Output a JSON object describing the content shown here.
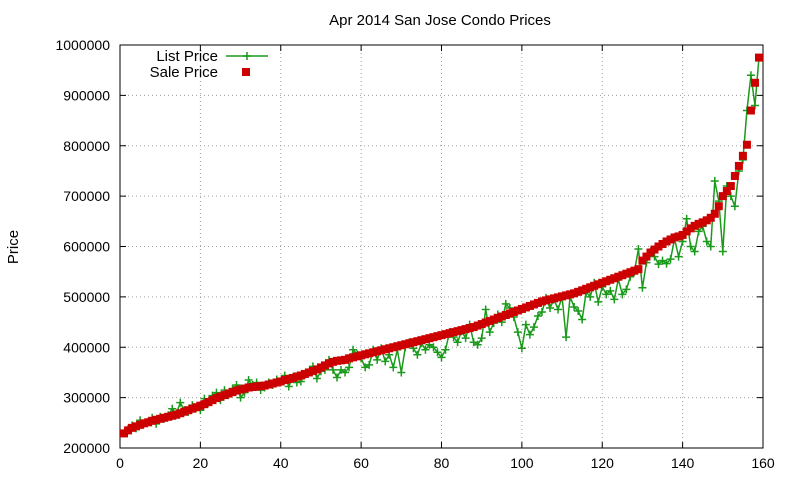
{
  "chart_data": {
    "type": "line",
    "title": "Apr 2014 San Jose Condo Prices",
    "xlabel": "",
    "ylabel": "Price",
    "xlim": [
      0,
      160
    ],
    "ylim": [
      200000,
      1000000
    ],
    "x_ticks": [
      0,
      20,
      40,
      60,
      80,
      100,
      120,
      140,
      160
    ],
    "y_ticks": [
      200000,
      300000,
      400000,
      500000,
      600000,
      700000,
      800000,
      900000,
      1000000
    ],
    "grid": true,
    "legend_position": "top-left",
    "series": [
      {
        "name": "List Price",
        "kind": "line-plus",
        "color": "#1a9a1a",
        "values": [
          229000,
          238000,
          245000,
          239000,
          255000,
          249000,
          252000,
          260000,
          248000,
          262000,
          258000,
          265000,
          278000,
          268000,
          290000,
          275000,
          272000,
          285000,
          280000,
          275000,
          298000,
          290000,
          304000,
          310000,
          295000,
          315000,
          305000,
          318000,
          325000,
          300000,
          310000,
          335000,
          325000,
          330000,
          315000,
          320000,
          330000,
          325000,
          336000,
          330000,
          344000,
          322000,
          340000,
          330000,
          332000,
          345000,
          350000,
          362000,
          338000,
          352000,
          355000,
          375000,
          355000,
          340000,
          355000,
          350000,
          360000,
          395000,
          386000,
          378000,
          360000,
          365000,
          395000,
          375000,
          398000,
          372000,
          385000,
          360000,
          395000,
          350000,
          400000,
          410000,
          398000,
          385000,
          408000,
          395000,
          405000,
          400000,
          390000,
          380000,
          395000,
          430000,
          420000,
          410000,
          432000,
          418000,
          445000,
          410000,
          405000,
          418000,
          475000,
          430000,
          448000,
          465000,
          450000,
          486000,
          478000,
          460000,
          430000,
          398000,
          445000,
          425000,
          440000,
          462000,
          470000,
          498000,
          478000,
          495000,
          475000,
          500000,
          420000,
          500000,
          480000,
          472000,
          455000,
          510000,
          500000,
          528000,
          490000,
          520000,
          505000,
          512000,
          495000,
          535000,
          505000,
          515000,
          540000,
          550000,
          595000,
          518000,
          568000,
          590000,
          580000,
          565000,
          572000,
          566000,
          575000,
          615000,
          580000,
          610000,
          655000,
          600000,
          590000,
          630000,
          640000,
          610000,
          600000,
          730000,
          690000,
          590000,
          720000,
          700000,
          680000,
          750000,
          772000,
          870000,
          940000,
          880000,
          975000
        ]
      },
      {
        "name": "Sale Price",
        "kind": "square",
        "color": "#cc0000",
        "values": [
          229000,
          235000,
          240000,
          243000,
          246000,
          249000,
          251000,
          254000,
          256000,
          258000,
          260000,
          262000,
          264000,
          266000,
          269000,
          272000,
          275000,
          278000,
          281000,
          284000,
          287000,
          291000,
          295000,
          299000,
          302000,
          305000,
          308000,
          311000,
          314000,
          316000,
          318000,
          320000,
          321000,
          322000,
          323000,
          324000,
          326000,
          328000,
          330000,
          332000,
          335000,
          337000,
          339000,
          342000,
          344000,
          347000,
          350000,
          353000,
          356000,
          360000,
          364000,
          368000,
          371000,
          373000,
          374000,
          375000,
          378000,
          380000,
          382000,
          384000,
          386000,
          388000,
          390000,
          392000,
          394000,
          396000,
          398000,
          400000,
          402000,
          404000,
          406000,
          408000,
          410000,
          412000,
          414000,
          416000,
          418000,
          420000,
          422000,
          424000,
          426000,
          428000,
          430000,
          432000,
          434000,
          436000,
          438000,
          440000,
          443000,
          446000,
          449000,
          452000,
          455000,
          458000,
          461000,
          464000,
          467000,
          470000,
          473000,
          476000,
          479000,
          482000,
          485000,
          488000,
          491000,
          493000,
          495000,
          497000,
          499000,
          501000,
          503000,
          505000,
          507000,
          510000,
          513000,
          516000,
          519000,
          522000,
          525000,
          528000,
          531000,
          534000,
          537000,
          540000,
          543000,
          546000,
          549000,
          552000,
          555000,
          572000,
          580000,
          588000,
          594000,
          600000,
          605000,
          610000,
          614000,
          618000,
          620000,
          623000,
          630000,
          636000,
          641000,
          645000,
          648000,
          652000,
          657000,
          665000,
          680000,
          700000,
          710000,
          720000,
          740000,
          760000,
          780000,
          802000,
          870000,
          925000,
          975000
        ]
      }
    ]
  }
}
